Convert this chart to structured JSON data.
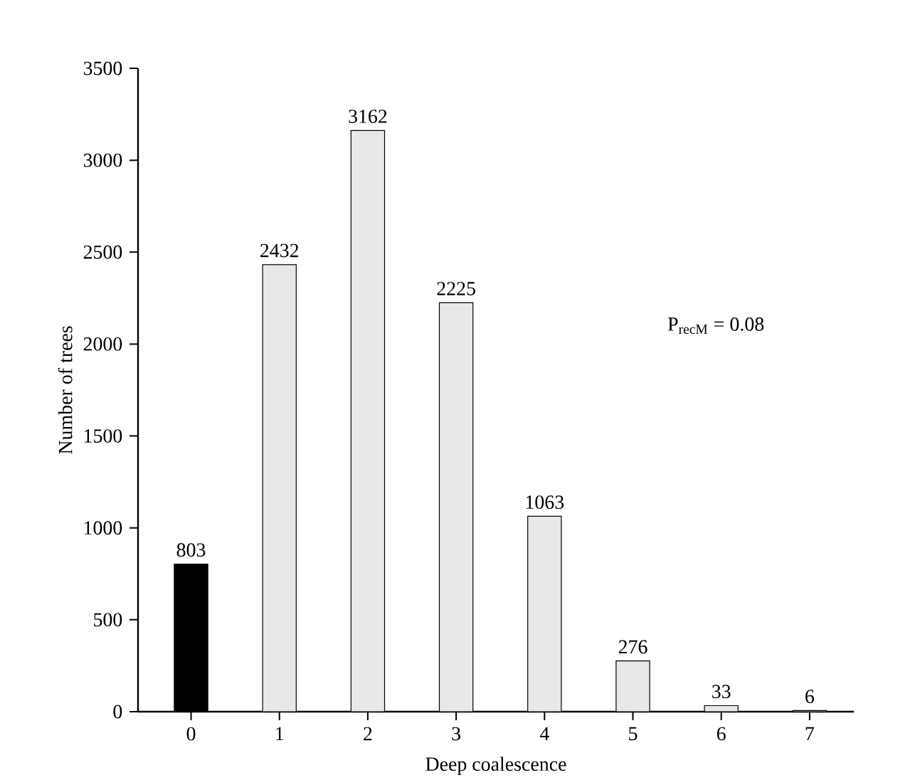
{
  "chart_data": {
    "type": "bar",
    "xlabel": "Deep coalescence",
    "ylabel": "Number of trees",
    "categories": [
      "0",
      "1",
      "2",
      "3",
      "4",
      "5",
      "6",
      "7"
    ],
    "values": [
      803,
      2432,
      3162,
      2225,
      1063,
      276,
      33,
      6
    ],
    "colors": [
      "#000000",
      "#e8e8e8",
      "#e8e8e8",
      "#e8e8e8",
      "#e8e8e8",
      "#e8e8e8",
      "#e8e8e8",
      "#e8e8e8"
    ],
    "value_labels": [
      "803",
      "2432",
      "3162",
      "2225",
      "1063",
      "276",
      "33",
      "6"
    ],
    "ylim": [
      0,
      3500
    ],
    "yticks": [
      0,
      500,
      1000,
      1500,
      2000,
      2500,
      3000,
      3500
    ],
    "annotations": [
      "P$_{recM}$ = 0.08"
    ],
    "grid": false
  }
}
